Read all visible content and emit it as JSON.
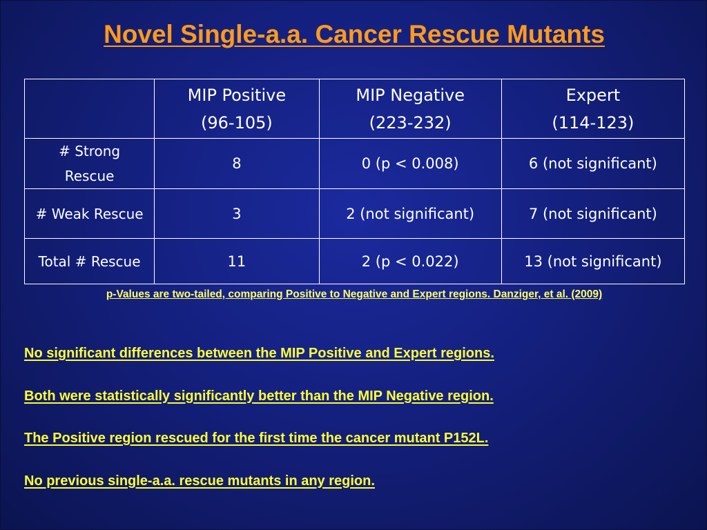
{
  "slide": {
    "title": "Novel Single-a.a. Cancer Rescue Mutants",
    "table": {
      "header": {
        "corner": "",
        "columns": [
          {
            "line1": "MIP Positive",
            "line2": "(96-105)"
          },
          {
            "line1": "MIP Negative",
            "line2": "(223-232)"
          },
          {
            "line1": "Expert",
            "line2": "(114-123)"
          }
        ]
      },
      "rows": [
        {
          "label_line1": "# Strong",
          "label_line2": "Rescue",
          "cells": [
            "8",
            "0 (p < 0.008)",
            "6 (not significant)"
          ]
        },
        {
          "label": "# Weak Rescue",
          "cells": [
            "3",
            "2 (not significant)",
            "7 (not significant)"
          ]
        },
        {
          "label": "Total # Rescue",
          "cells": [
            "11",
            "2 (p < 0.022)",
            "13 (not significant)"
          ]
        }
      ]
    },
    "footnote": "p-Values are two-tailed, comparing Positive to Negative and Expert regions. Danziger, et al. (2009)",
    "bullets": [
      "No significant differences between the MIP Positive and Expert regions.",
      "Both were statistically significantly better than the MIP Negative region.",
      "The Positive region rescued for the first time the cancer mutant P152L.",
      "No previous single-a.a. rescue mutants in any region."
    ],
    "colors": {
      "background": "#14207e",
      "title": "#ff9a1a",
      "footnote": "#ffff66",
      "bullets": "#ffff33",
      "table_text": "#ffffff"
    }
  }
}
